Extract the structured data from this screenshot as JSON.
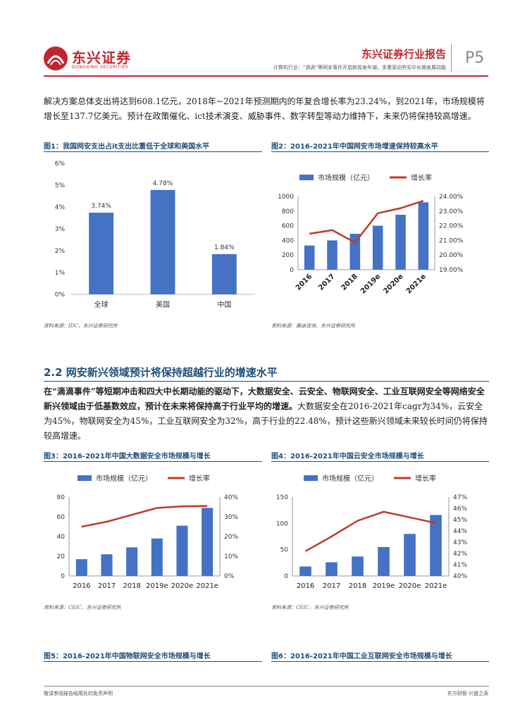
{
  "header": {
    "logo_text": "东兴证券",
    "logo_sub": "DONGXING SECURITIES",
    "report_title": "东兴证券行业报告",
    "report_subtitle": "计算机行业：“滴滴”等网安事件开启新规发布潮，多重驱动夯实中长期发展动能",
    "page_number": "P5"
  },
  "intro_paragraph": "解决方案总体支出将达到608.1亿元，2018年~2021年预测期内的年复合增长率为23.24%，到2021年，市场规模将增长至137.7亿美元。预计在政策催化、ict技术演变、威胁事件、数字转型等动力维持下，未来仍将保持较高增速。",
  "section": {
    "title": "2.2 网安新兴领域预计将保持超越行业的增速水平",
    "bold_text": "在“滴滴事件”等短期冲击和四大中长期动能的驱动下，大数据安全、云安全、物联网安全、工业互联网安全等网络安全新兴领域由于低基数效应，预计在未来将保持高于行业平均的增速。",
    "normal_text": "大数据安全在2016-2021年cagr为34%，云安全为45%，物联网安全为45%，工业互联网安全为32%，高于行业的22.48%，预计这些新兴领域未来较长时间仍将保持较高增速。"
  },
  "figures": {
    "fig1_title": "图1：我国网安支出占it支出比重低于全球和美国水平",
    "fig2_title": "图2：2016-2021年中国网安市场增速保持较高水平",
    "fig3_title": "图3：2016-2021年中国大数据安全市场规模与增长",
    "fig4_title": "图4：2016-2021年中国云安全市场规模与增长",
    "fig5_title": "图5：2016-2021年中国物联网安全市场规模与增长",
    "fig6_title": "图6：2016-2021年中国工业互联网安全市场规模与增长",
    "fig1_source": "资料来源：IDC，东兴证券研究所",
    "fig2_source": "资料来源：赛迪咨询，东兴证券研究所",
    "fig3_source": "资料来源：CEIC，东兴证券研究所",
    "fig4_source": "资料来源：CEIC，东兴证券研究所"
  },
  "chart_data": [
    {
      "id": "fig1",
      "type": "bar",
      "categories": [
        "全球",
        "美国",
        "中国"
      ],
      "values": [
        3.74,
        4.78,
        1.84
      ],
      "data_labels": [
        "3.74%",
        "4.78%",
        "1.84%"
      ],
      "ylim": [
        0,
        6
      ],
      "yticks": [
        "0%",
        "1%",
        "2%",
        "3%",
        "4%",
        "5%",
        "6%"
      ],
      "color": "#4472c4"
    },
    {
      "id": "fig2",
      "type": "bar+line",
      "categories": [
        "2016",
        "2017",
        "2018",
        "2019e",
        "2020e",
        "2021e"
      ],
      "series": [
        {
          "name": "市场规模（亿元）",
          "type": "bar",
          "values": [
            330,
            400,
            490,
            600,
            750,
            920
          ]
        },
        {
          "name": "增长率",
          "type": "line",
          "values": [
            21.45,
            21.7,
            20.85,
            22.85,
            23.2,
            23.7
          ]
        }
      ],
      "ylim": [
        0,
        1000
      ],
      "yticks": [
        "0",
        "200",
        "400",
        "600",
        "800",
        "1000"
      ],
      "y2lim": [
        19,
        24
      ],
      "y2ticks": [
        "19.00%",
        "20.00%",
        "21.00%",
        "22.00%",
        "23.00%",
        "24.00%"
      ],
      "legend": "top",
      "bar_color": "#4472c4",
      "line_color": "#c0392b"
    },
    {
      "id": "fig3",
      "type": "bar+line",
      "categories": [
        "2016",
        "2017",
        "2018",
        "2019e",
        "2020e",
        "2021e"
      ],
      "series": [
        {
          "name": "市场规模（亿元）",
          "type": "bar",
          "values": [
            17,
            22,
            29,
            38,
            51,
            69
          ]
        },
        {
          "name": "增长率",
          "type": "line",
          "values": [
            25,
            27.5,
            31,
            34.5,
            35.3,
            35.5
          ]
        }
      ],
      "ylim": [
        0,
        80
      ],
      "yticks": [
        "0",
        "20",
        "40",
        "60",
        "80"
      ],
      "y2lim": [
        0,
        40
      ],
      "y2ticks": [
        "0%",
        "10%",
        "20%",
        "30%",
        "40%"
      ],
      "legend": "top",
      "bar_color": "#4472c4",
      "line_color": "#c0392b"
    },
    {
      "id": "fig4",
      "type": "bar+line",
      "categories": [
        "2016",
        "2017",
        "2018",
        "2019e",
        "2020e",
        "2021e"
      ],
      "series": [
        {
          "name": "市场规模（亿元）",
          "type": "bar",
          "values": [
            18,
            26,
            37,
            55,
            80,
            116
          ]
        },
        {
          "name": "增长率",
          "type": "line",
          "values": [
            42.2,
            43.5,
            44.9,
            45.7,
            45.2,
            44.7
          ]
        }
      ],
      "ylim": [
        0,
        150
      ],
      "yticks": [
        "0",
        "50",
        "100",
        "150"
      ],
      "y2lim": [
        40,
        47
      ],
      "y2ticks": [
        "40%",
        "41%",
        "42%",
        "43%",
        "44%",
        "45%",
        "46%",
        "47%"
      ],
      "legend": "top",
      "bar_color": "#4472c4",
      "line_color": "#c0392b"
    }
  ],
  "footer": {
    "left": "敬请参阅报告结尾处的免责声明",
    "right": "东方财智  兴盛之源"
  }
}
